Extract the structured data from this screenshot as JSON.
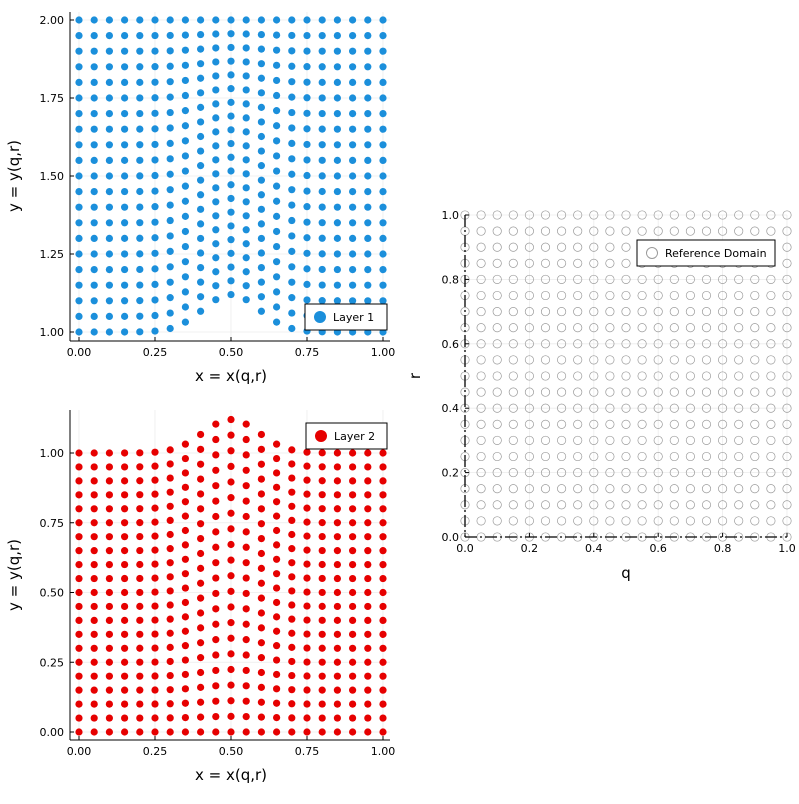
{
  "colors": {
    "layer1": "#1b8fdb",
    "layer2": "#e60000",
    "reference_stroke": "#9a9a9a",
    "axis": "#000000",
    "grid": "#ececec"
  },
  "chart_data": [
    {
      "type": "scatter",
      "id": "layer1",
      "xlabel": "x = x(q,r)",
      "ylabel": "y = y(q,r)",
      "xlim": [
        0,
        1
      ],
      "ylim": [
        1,
        2
      ],
      "xticks": [
        {
          "v": 0,
          "label": "0.00"
        },
        {
          "v": 0.25,
          "label": "0.25"
        },
        {
          "v": 0.5,
          "label": "0.50"
        },
        {
          "v": 0.75,
          "label": "0.75"
        },
        {
          "v": 1,
          "label": "1.00"
        }
      ],
      "yticks": [
        {
          "v": 1,
          "label": "1.00"
        },
        {
          "v": 1.25,
          "label": "1.25"
        },
        {
          "v": 1.5,
          "label": "1.50"
        },
        {
          "v": 1.75,
          "label": "1.75"
        },
        {
          "v": 2,
          "label": "2.00"
        }
      ],
      "legend": {
        "label": "Layer 1",
        "position": "bottom-right"
      },
      "grid_points": 21,
      "mapping": "y = 1 + r + 0.12*exp(-((x-0.5)/0.13)^2)*(1-r)",
      "grid": true
    },
    {
      "type": "scatter",
      "id": "layer2",
      "xlabel": "x = x(q,r)",
      "ylabel": "y = y(q,r)",
      "xlim": [
        0,
        1
      ],
      "ylim": [
        0,
        1.12
      ],
      "xticks": [
        {
          "v": 0,
          "label": "0.00"
        },
        {
          "v": 0.25,
          "label": "0.25"
        },
        {
          "v": 0.5,
          "label": "0.50"
        },
        {
          "v": 0.75,
          "label": "0.75"
        },
        {
          "v": 1,
          "label": "1.00"
        }
      ],
      "yticks": [
        {
          "v": 0,
          "label": "0.00"
        },
        {
          "v": 0.25,
          "label": "0.25"
        },
        {
          "v": 0.5,
          "label": "0.50"
        },
        {
          "v": 0.75,
          "label": "0.75"
        },
        {
          "v": 1,
          "label": "1.00"
        }
      ],
      "legend": {
        "label": "Layer 2",
        "position": "top-right"
      },
      "grid_points": 21,
      "mapping": "y = r*(1 + 0.12*exp(-((x-0.5)/0.13)^2))",
      "grid": true
    },
    {
      "type": "scatter",
      "id": "reference",
      "xlabel": "q",
      "ylabel": "r",
      "xlim": [
        0,
        1
      ],
      "ylim": [
        0,
        1
      ],
      "xticks": [
        {
          "v": 0,
          "label": "0.0"
        },
        {
          "v": 0.2,
          "label": "0.2"
        },
        {
          "v": 0.4,
          "label": "0.4"
        },
        {
          "v": 0.6,
          "label": "0.6"
        },
        {
          "v": 0.8,
          "label": "0.8"
        },
        {
          "v": 1,
          "label": "1.0"
        }
      ],
      "yticks": [
        {
          "v": 0,
          "label": "0.0"
        },
        {
          "v": 0.2,
          "label": "0.2"
        },
        {
          "v": 0.4,
          "label": "0.4"
        },
        {
          "v": 0.6,
          "label": "0.6"
        },
        {
          "v": 0.8,
          "label": "0.8"
        },
        {
          "v": 1,
          "label": "1.0"
        }
      ],
      "legend": {
        "label": "Reference Domain",
        "position": "top-right"
      },
      "grid_points": 21,
      "marker": "open-circle",
      "grid": true
    }
  ]
}
